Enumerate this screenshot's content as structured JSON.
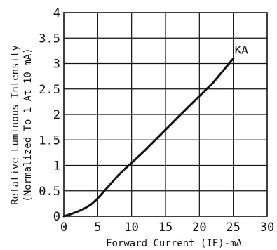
{
  "chart_data": {
    "type": "line",
    "title": "",
    "xlabel": "Forward Current (IF)-mA",
    "ylabel_line1": "Relative Luminous Intensity",
    "ylabel_line2": "(Normalized To 1 At 10 mA)",
    "xlim": [
      0,
      30
    ],
    "ylim": [
      0,
      4
    ],
    "xticks": [
      "0",
      "5",
      "10",
      "15",
      "20",
      "25",
      "30"
    ],
    "yticks": [
      "0",
      "0.5",
      "1",
      "1.5",
      "2",
      "2.5",
      "3",
      "3.5",
      "4"
    ],
    "grid": true,
    "series": [
      {
        "name": "KA",
        "x": [
          0,
          1,
          2,
          3,
          4,
          5,
          6,
          7,
          8,
          9,
          10,
          12,
          15,
          18,
          20,
          22,
          25
        ],
        "y": [
          0,
          0.04,
          0.09,
          0.15,
          0.23,
          0.35,
          0.5,
          0.65,
          0.8,
          0.93,
          1.05,
          1.3,
          1.7,
          2.1,
          2.36,
          2.62,
          3.1
        ]
      }
    ]
  }
}
